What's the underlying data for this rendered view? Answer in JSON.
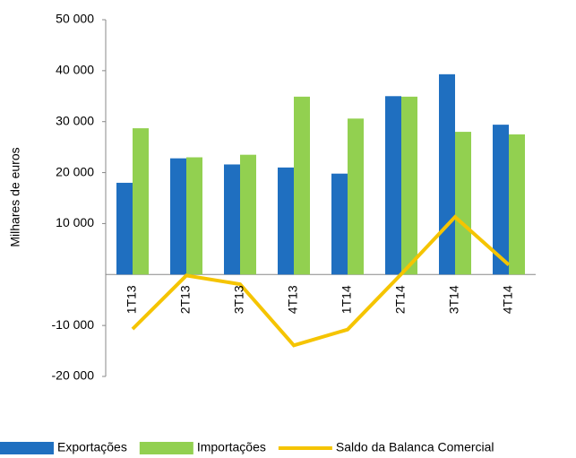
{
  "chart_data": {
    "type": "bar-line",
    "y_label": "Milhares de euros",
    "categories": [
      "1T13",
      "2T13",
      "3T13",
      "4T13",
      "1T14",
      "2T14",
      "3T14",
      "4T14"
    ],
    "series": [
      {
        "name": "Exportações",
        "type": "bar",
        "color": "#1f6fc0",
        "values": [
          18000,
          22800,
          21600,
          21000,
          19800,
          35000,
          39300,
          29400
        ]
      },
      {
        "name": "Importações",
        "type": "bar",
        "color": "#92d050",
        "values": [
          28700,
          23000,
          23500,
          34900,
          30600,
          34900,
          28000,
          27500
        ]
      },
      {
        "name": "Saldo da Balanca Comercial",
        "type": "line",
        "color": "#f5c400",
        "values": [
          -10700,
          -200,
          -1900,
          -13900,
          -10800,
          100,
          11300,
          1900
        ]
      }
    ],
    "ylim": [
      -20000,
      50000
    ],
    "yticks": [
      {
        "value": -20000,
        "label": "-20 000"
      },
      {
        "value": -10000,
        "label": "-10 000"
      },
      {
        "value": 10000,
        "label": "10 000"
      },
      {
        "value": 20000,
        "label": "20 000"
      },
      {
        "value": 30000,
        "label": "30 000"
      },
      {
        "value": 40000,
        "label": "40 000"
      },
      {
        "value": 50000,
        "label": "50 000"
      }
    ],
    "grid": false,
    "legend": "bottom"
  }
}
